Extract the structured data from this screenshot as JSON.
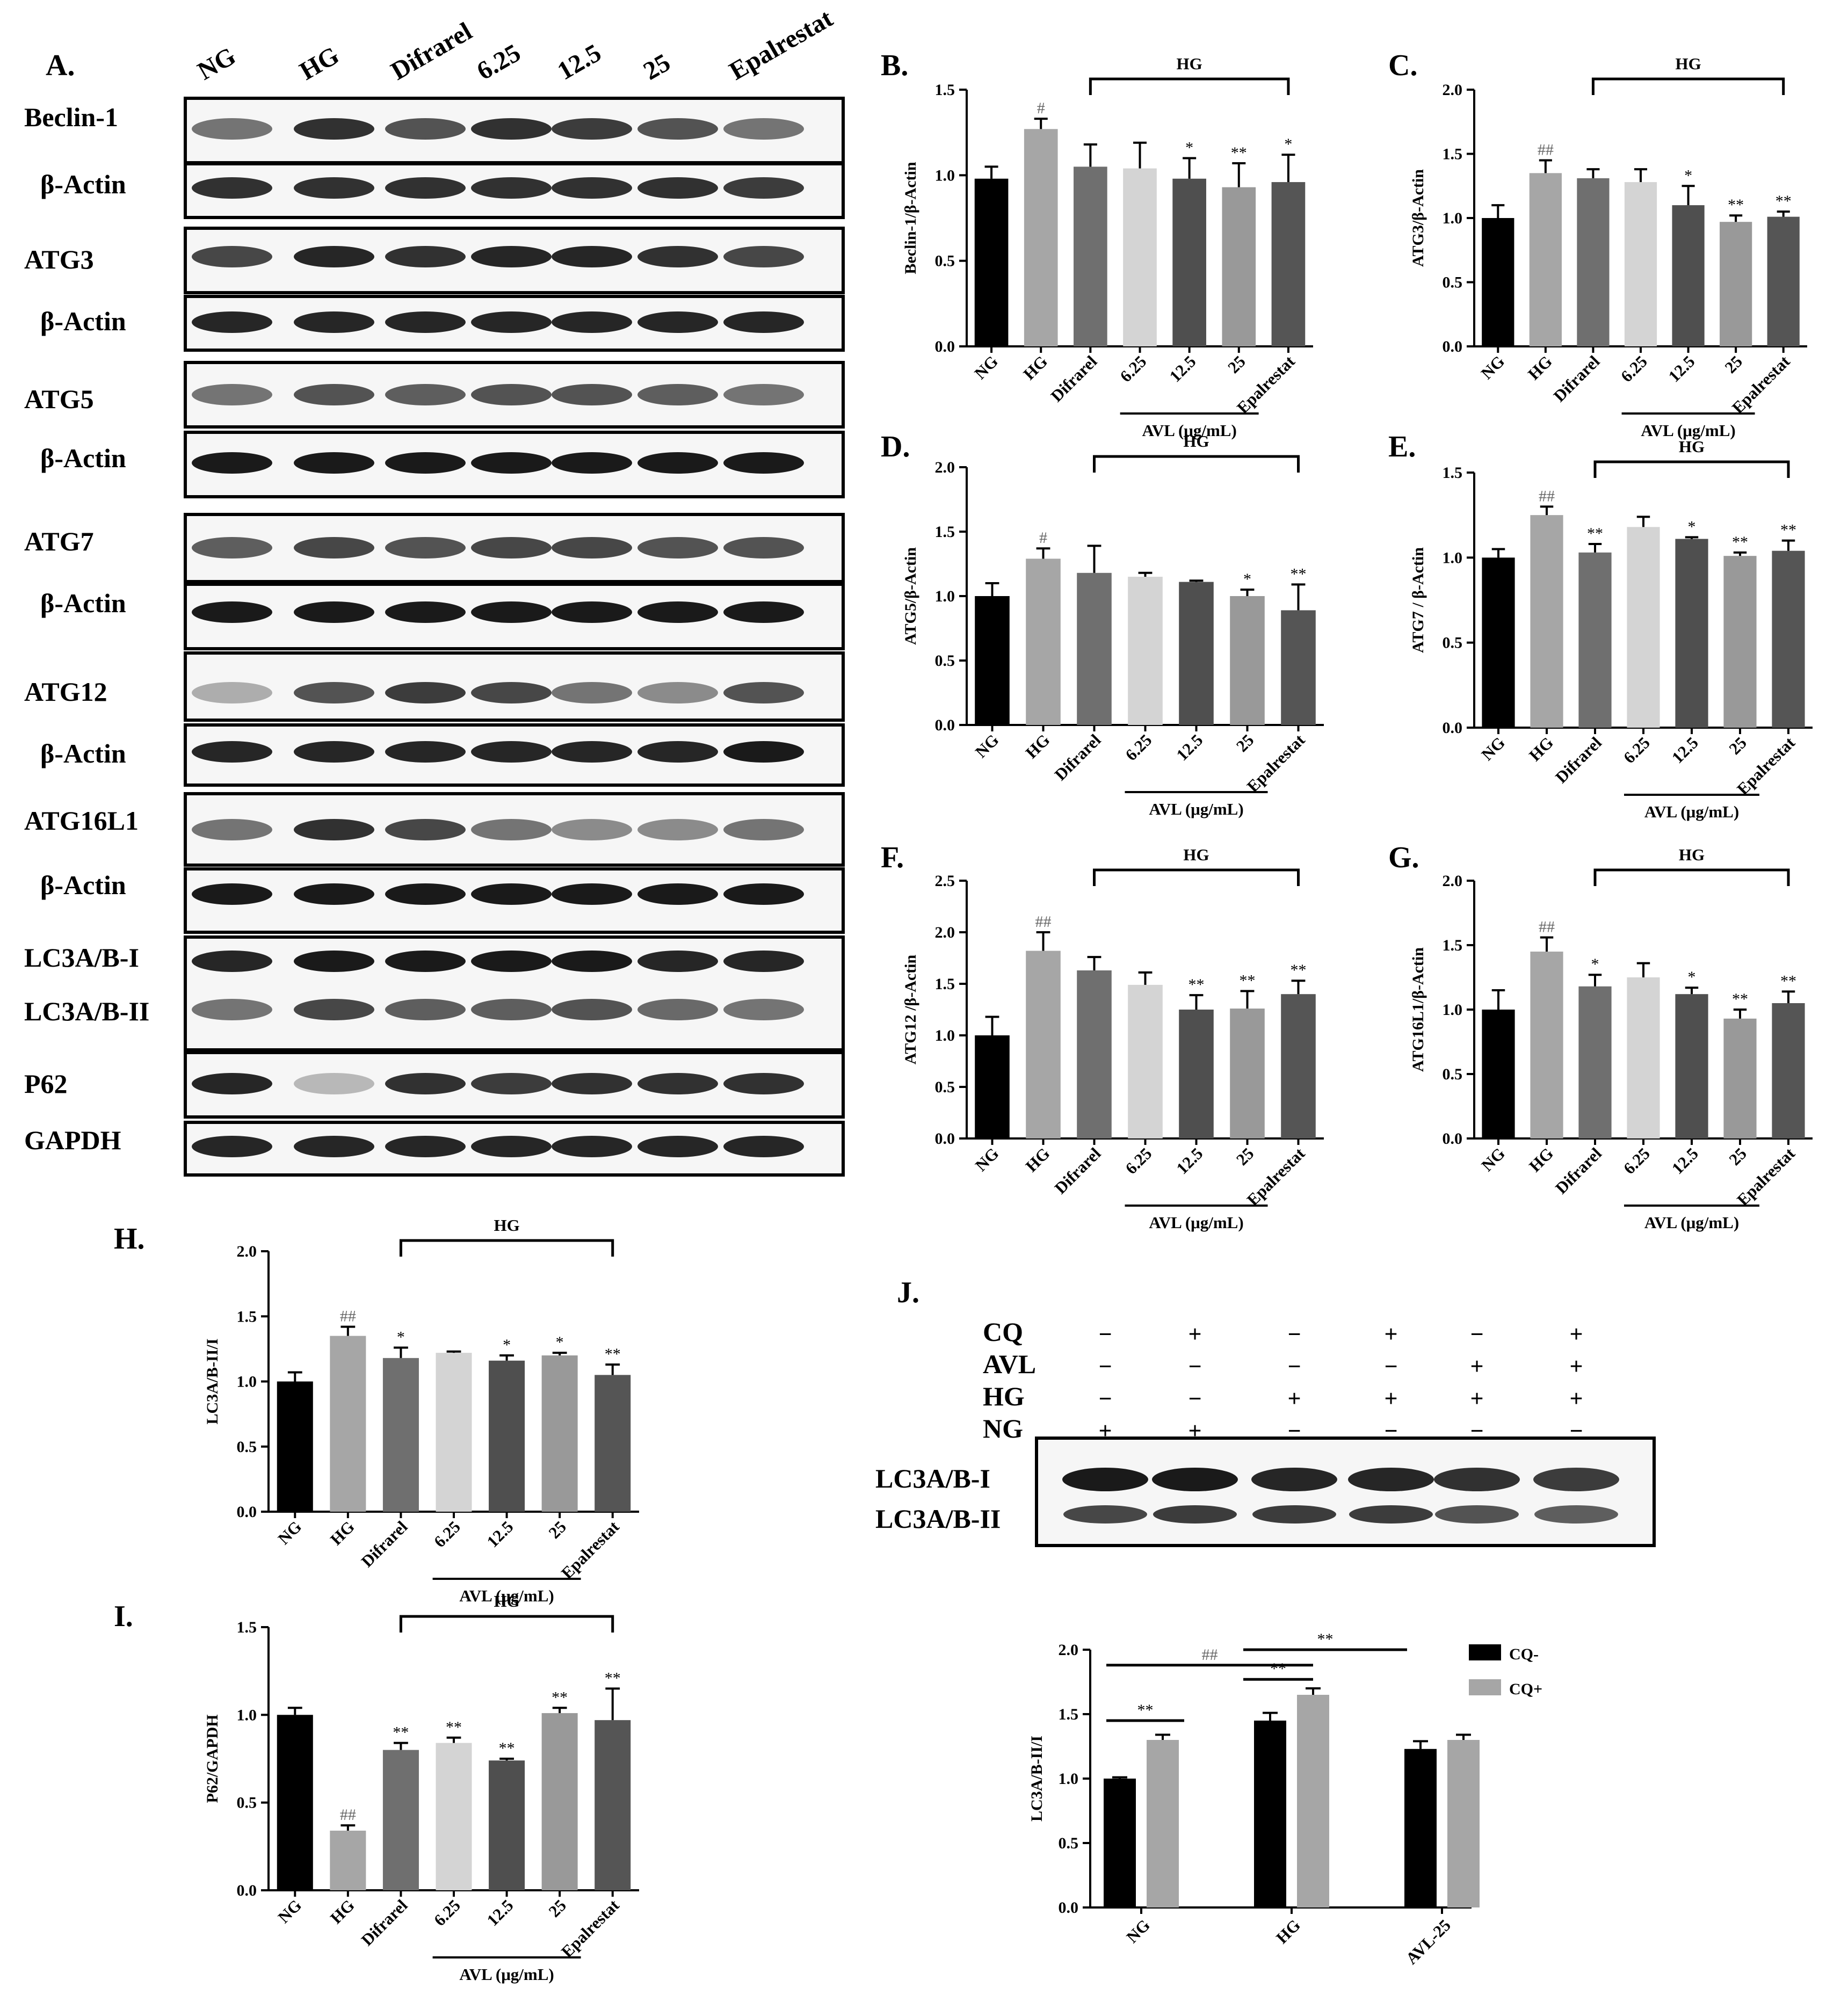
{
  "panels": {
    "A": "A.",
    "B": "B.",
    "C": "C.",
    "D": "D.",
    "E": "E.",
    "F": "F.",
    "G": "G.",
    "H": "H.",
    "I": "I.",
    "J": "J."
  },
  "western_a": {
    "lanes": [
      "NG",
      "HG",
      "Difrarel",
      "6.25",
      "12.5",
      "25",
      "Epalrestat"
    ],
    "bands": [
      "Beclin-1",
      "β-Actin",
      "ATG3",
      "β-Actin",
      "ATG5",
      "β-Actin",
      "ATG7",
      "β-Actin",
      "ATG12",
      "β-Actin",
      "ATG16L1",
      "β-Actin",
      "LC3A/B-I",
      "LC3A/B-II",
      "P62",
      "GAPDH"
    ]
  },
  "western_j": {
    "rows": [
      {
        "label": "CQ",
        "signs": [
          "−",
          "+",
          "−",
          "+",
          "−",
          "+"
        ]
      },
      {
        "label": "AVL",
        "signs": [
          "−",
          "−",
          "−",
          "−",
          "+",
          "+"
        ]
      },
      {
        "label": "HG",
        "signs": [
          "−",
          "−",
          "+",
          "+",
          "+",
          "+"
        ]
      },
      {
        "label": "NG",
        "signs": [
          "+",
          "+",
          "−",
          "−",
          "−",
          "−"
        ]
      }
    ],
    "bands": [
      "LC3A/B-I",
      "LC3A/B-II"
    ]
  },
  "common": {
    "categories": [
      "NG",
      "HG",
      "Difrarel",
      "6.25",
      "12.5",
      "25",
      "Epalrestat"
    ],
    "group_label": "HG",
    "avl_label": "AVL (μg/mL)"
  },
  "colors": {
    "bars": [
      "#000000",
      "#a6a6a6",
      "#6f6f6f",
      "#d4d4d4",
      "#4f4f4f",
      "#999999",
      "#555555"
    ],
    "cq_minus": "#000000",
    "cq_plus": "#a6a6a6"
  },
  "chart_data": [
    {
      "id": "B",
      "type": "bar",
      "ylabel": "Beclin-1/β-Actin",
      "ylim": [
        0,
        1.5
      ],
      "yticks": [
        "0.0",
        "0.5",
        "1.0",
        "1.5"
      ],
      "values": [
        0.98,
        1.27,
        1.05,
        1.04,
        0.98,
        0.93,
        0.96
      ],
      "errors": [
        0.07,
        0.06,
        0.13,
        0.15,
        0.12,
        0.14,
        0.16
      ],
      "annotations": [
        "",
        "#",
        "",
        "",
        "*",
        "**",
        "*"
      ]
    },
    {
      "id": "C",
      "type": "bar",
      "ylabel": "ATG3/β-Actin",
      "ylim": [
        0,
        2.0
      ],
      "yticks": [
        "0.0",
        "0.5",
        "1.0",
        "1.5",
        "2.0"
      ],
      "values": [
        1.0,
        1.35,
        1.31,
        1.28,
        1.1,
        0.97,
        1.01
      ],
      "errors": [
        0.1,
        0.1,
        0.07,
        0.1,
        0.15,
        0.05,
        0.04
      ],
      "annotations": [
        "",
        "##",
        "",
        "",
        "*",
        "**",
        "**"
      ]
    },
    {
      "id": "D",
      "type": "bar",
      "ylabel": "ATG5/β-Actin",
      "ylim": [
        0,
        2.0
      ],
      "yticks": [
        "0.0",
        "0.5",
        "1.0",
        "1.5",
        "2.0"
      ],
      "values": [
        1.0,
        1.29,
        1.18,
        1.15,
        1.11,
        1.0,
        0.89
      ],
      "errors": [
        0.1,
        0.08,
        0.21,
        0.03,
        0.01,
        0.05,
        0.2
      ],
      "annotations": [
        "",
        "#",
        "",
        "",
        "",
        "*",
        "**"
      ]
    },
    {
      "id": "E",
      "type": "bar",
      "ylabel": "ATG7 / β-Actin",
      "ylim": [
        0,
        1.5
      ],
      "yticks": [
        "0.0",
        "0.5",
        "1.0",
        "1.5"
      ],
      "values": [
        1.0,
        1.25,
        1.03,
        1.18,
        1.11,
        1.01,
        1.04
      ],
      "errors": [
        0.05,
        0.05,
        0.05,
        0.06,
        0.01,
        0.02,
        0.06
      ],
      "annotations": [
        "",
        "##",
        "**",
        "",
        "*",
        "**",
        "**"
      ]
    },
    {
      "id": "F",
      "type": "bar",
      "ylabel": "ATG12 /β-Actin",
      "ylim": [
        0,
        2.5
      ],
      "yticks": [
        "0.0",
        "0.5",
        "1.0",
        "1.5",
        "2.0",
        "2.5"
      ],
      "values": [
        1.0,
        1.82,
        1.63,
        1.49,
        1.25,
        1.26,
        1.4
      ],
      "errors": [
        0.18,
        0.18,
        0.13,
        0.12,
        0.14,
        0.17,
        0.13
      ],
      "annotations": [
        "",
        "##",
        "",
        "",
        "**",
        "**",
        "**"
      ]
    },
    {
      "id": "G",
      "type": "bar",
      "ylabel": "ATG16L1/β-Actin",
      "ylim": [
        0,
        2.0
      ],
      "yticks": [
        "0.0",
        "0.5",
        "1.0",
        "1.5",
        "2.0"
      ],
      "values": [
        1.0,
        1.45,
        1.18,
        1.25,
        1.12,
        0.93,
        1.05
      ],
      "errors": [
        0.15,
        0.11,
        0.09,
        0.11,
        0.05,
        0.07,
        0.09
      ],
      "annotations": [
        "",
        "##",
        "*",
        "",
        "*",
        "**",
        "**"
      ]
    },
    {
      "id": "H",
      "type": "bar",
      "ylabel": "LC3A/B-II/I",
      "ylim": [
        0,
        2.0
      ],
      "yticks": [
        "0.0",
        "0.5",
        "1.0",
        "1.5",
        "2.0"
      ],
      "values": [
        1.0,
        1.35,
        1.18,
        1.22,
        1.16,
        1.2,
        1.05
      ],
      "errors": [
        0.07,
        0.07,
        0.08,
        0.01,
        0.04,
        0.02,
        0.08
      ],
      "annotations": [
        "",
        "##",
        "*",
        "",
        "*",
        "*",
        "**"
      ]
    },
    {
      "id": "I",
      "type": "bar",
      "ylabel": "P62/GAPDH",
      "ylim": [
        0,
        1.5
      ],
      "yticks": [
        "0.0",
        "0.5",
        "1.0",
        "1.5"
      ],
      "values": [
        1.0,
        0.34,
        0.8,
        0.84,
        0.74,
        1.01,
        0.97
      ],
      "errors": [
        0.04,
        0.03,
        0.04,
        0.03,
        0.01,
        0.03,
        0.18
      ],
      "annotations": [
        "",
        "##",
        "**",
        "**",
        "**",
        "**",
        "**"
      ]
    },
    {
      "id": "J",
      "type": "bar",
      "ylabel": "LC3A/B-II/I",
      "ylim": [
        0,
        2.0
      ],
      "yticks": [
        "0.0",
        "0.5",
        "1.0",
        "1.5",
        "2.0"
      ],
      "categories": [
        "NG",
        "HG",
        "AVL-25"
      ],
      "series": [
        {
          "name": "CQ-",
          "values": [
            1.0,
            1.45,
            1.23
          ],
          "errors": [
            0.01,
            0.06,
            0.06
          ]
        },
        {
          "name": "CQ+",
          "values": [
            1.3,
            1.65,
            1.3
          ],
          "errors": [
            0.04,
            0.05,
            0.04
          ]
        }
      ],
      "brackets": [
        {
          "label": "**"
        },
        {
          "label": "##"
        },
        {
          "label": "**"
        },
        {
          "label": "**"
        }
      ],
      "legend": "top-right"
    }
  ]
}
